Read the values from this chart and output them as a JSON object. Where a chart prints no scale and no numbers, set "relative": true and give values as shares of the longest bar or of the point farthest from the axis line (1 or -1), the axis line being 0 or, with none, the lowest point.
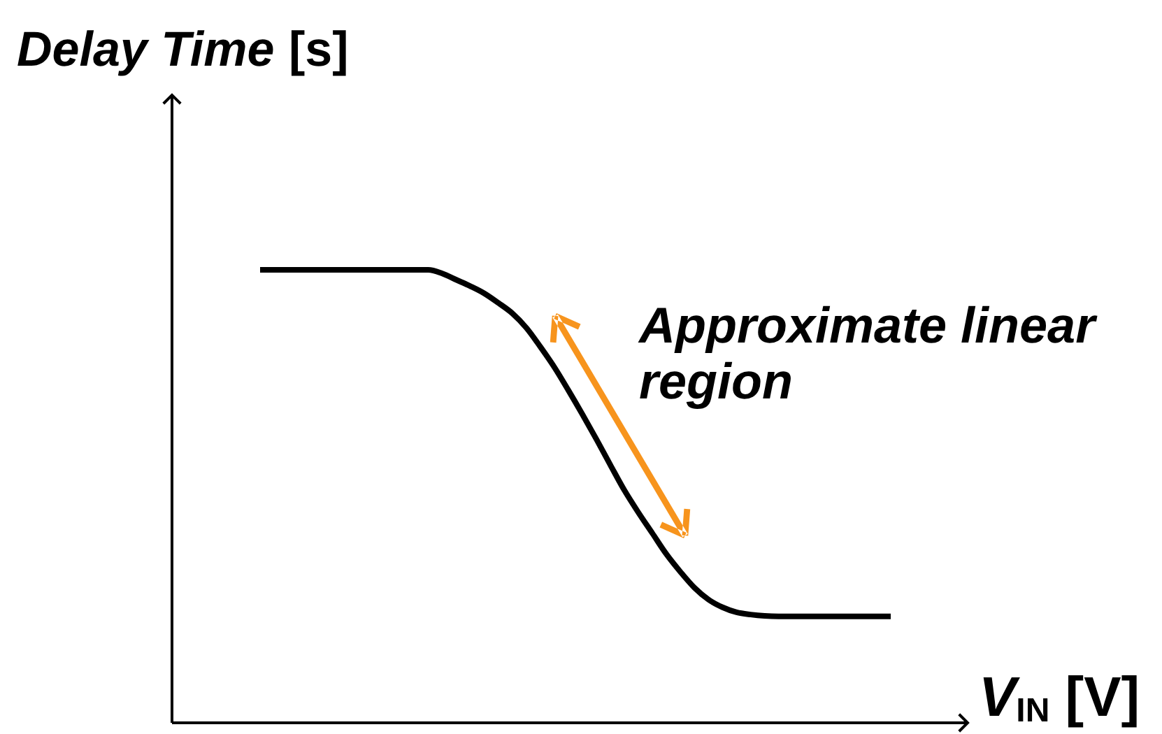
{
  "chart_data": {
    "type": "line",
    "relative": true,
    "xlabel": "V$_{IN}$ [V]",
    "ylabel": "Delay Time [s]",
    "annotations": [
      "Approximate linear region"
    ],
    "categories": [
      null,
      null,
      null,
      null,
      null,
      null,
      null,
      null,
      null,
      null,
      null,
      null,
      null,
      null,
      null,
      null,
      null,
      null,
      null,
      null,
      null,
      null,
      null,
      null,
      null,
      null,
      null,
      null,
      null,
      null,
      null,
      null,
      null,
      null,
      null,
      null,
      null,
      null,
      null,
      null,
      null,
      null,
      null,
      null,
      null,
      null
    ],
    "series": [
      {
        "color": "#000000",
        "values": [
          1.0,
          1.0,
          1.0,
          1.0,
          1.0,
          1.0,
          1.0,
          1.0,
          1.0,
          1.0,
          1.0,
          1.0,
          1.0,
          0.992,
          0.978,
          0.964,
          0.948,
          0.927,
          0.904,
          0.872,
          0.83,
          0.785,
          0.734,
          0.681,
          0.626,
          0.569,
          0.513,
          0.464,
          0.418,
          0.372,
          0.333,
          0.298,
          0.272,
          0.255,
          0.244,
          0.239,
          0.236,
          0.235,
          0.235,
          0.235,
          0.235,
          0.235,
          0.235,
          0.235,
          0.235,
          0.235
        ]
      }
    ]
  }
}
